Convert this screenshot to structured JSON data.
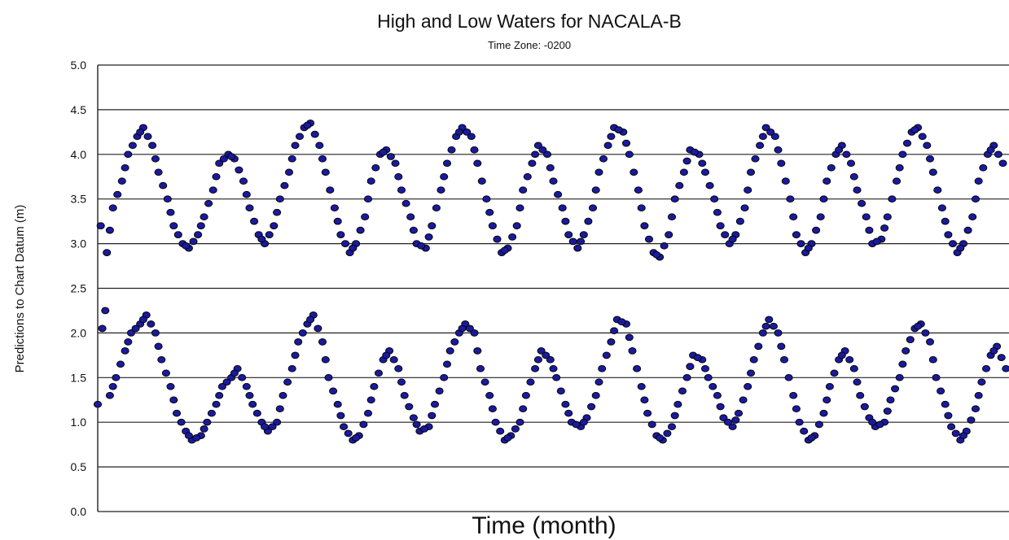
{
  "chart_data": {
    "type": "scatter",
    "title": "High and Low Waters for NACALA-B",
    "subtitle": "Time Zone: -0200",
    "xlabel": "Time (month)",
    "ylabel": "Predictions to Chart Datum (m)",
    "ylim": [
      0.0,
      5.0
    ],
    "yticks": [
      "0.0",
      "0.5",
      "1.0",
      "1.5",
      "2.0",
      "2.5",
      "3.0",
      "3.5",
      "4.0",
      "4.5",
      "5.0"
    ],
    "xlim": [
      0,
      30
    ],
    "grid": true,
    "marker_color": "#1a1a9c",
    "marker_edge_color": "#000000",
    "cycle_days": 14.77,
    "series": [
      {
        "values": [
          [
            0.0,
            1.2
          ],
          [
            0.1,
            3.2
          ],
          [
            0.3,
            2.9
          ],
          [
            0.4,
            1.3
          ],
          [
            0.5,
            3.4
          ],
          [
            0.6,
            1.5
          ],
          [
            0.8,
            3.7
          ],
          [
            0.9,
            1.8
          ],
          [
            1.0,
            4.0
          ],
          [
            1.1,
            2.0
          ],
          [
            1.3,
            4.2
          ],
          [
            1.4,
            2.1
          ],
          [
            1.5,
            4.3
          ],
          [
            1.6,
            2.2
          ],
          [
            1.8,
            4.1
          ],
          [
            1.9,
            2.0
          ],
          [
            2.0,
            3.8
          ],
          [
            2.1,
            1.7
          ],
          [
            2.3,
            3.5
          ],
          [
            2.4,
            1.4
          ],
          [
            2.5,
            3.2
          ],
          [
            2.6,
            1.1
          ],
          [
            2.8,
            3.0
          ],
          [
            2.9,
            0.9
          ],
          [
            3.0,
            2.95
          ],
          [
            3.1,
            0.8
          ],
          [
            3.3,
            3.1
          ],
          [
            3.4,
            0.85
          ],
          [
            3.5,
            3.3
          ],
          [
            3.6,
            1.0
          ],
          [
            3.8,
            3.6
          ],
          [
            3.9,
            1.2
          ],
          [
            4.0,
            3.9
          ],
          [
            4.1,
            1.4
          ],
          [
            4.3,
            4.0
          ],
          [
            4.4,
            1.5
          ],
          [
            4.5,
            3.95
          ],
          [
            4.6,
            1.6
          ],
          [
            4.8,
            3.7
          ],
          [
            4.9,
            1.4
          ],
          [
            5.0,
            3.4
          ],
          [
            5.1,
            1.2
          ],
          [
            5.3,
            3.1
          ],
          [
            5.4,
            1.0
          ],
          [
            5.5,
            3.0
          ],
          [
            5.6,
            0.9
          ],
          [
            5.8,
            3.2
          ],
          [
            5.9,
            1.0
          ],
          [
            6.0,
            3.5
          ],
          [
            6.1,
            1.3
          ],
          [
            6.3,
            3.8
          ],
          [
            6.4,
            1.6
          ],
          [
            6.5,
            4.1
          ],
          [
            6.6,
            1.9
          ],
          [
            6.8,
            4.3
          ],
          [
            6.9,
            2.1
          ],
          [
            7.0,
            4.35
          ],
          [
            7.1,
            2.2
          ],
          [
            7.3,
            4.1
          ],
          [
            7.4,
            1.9
          ],
          [
            7.5,
            3.8
          ],
          [
            7.6,
            1.5
          ],
          [
            7.8,
            3.4
          ],
          [
            7.9,
            1.2
          ],
          [
            8.0,
            3.1
          ],
          [
            8.1,
            0.95
          ],
          [
            8.3,
            2.9
          ],
          [
            8.4,
            0.8
          ],
          [
            8.5,
            3.0
          ],
          [
            8.6,
            0.85
          ],
          [
            8.8,
            3.3
          ],
          [
            8.9,
            1.1
          ],
          [
            9.0,
            3.7
          ],
          [
            9.1,
            1.4
          ],
          [
            9.3,
            4.0
          ],
          [
            9.4,
            1.7
          ],
          [
            9.5,
            4.05
          ],
          [
            9.6,
            1.8
          ],
          [
            9.8,
            3.9
          ],
          [
            9.9,
            1.6
          ],
          [
            10.0,
            3.6
          ],
          [
            10.1,
            1.3
          ],
          [
            10.3,
            3.3
          ],
          [
            10.4,
            1.05
          ],
          [
            10.5,
            3.0
          ],
          [
            10.6,
            0.9
          ],
          [
            10.8,
            2.95
          ],
          [
            10.9,
            0.95
          ],
          [
            11.0,
            3.2
          ],
          [
            11.1,
            1.2
          ],
          [
            11.3,
            3.6
          ],
          [
            11.4,
            1.5
          ],
          [
            11.5,
            3.9
          ],
          [
            11.6,
            1.8
          ],
          [
            11.8,
            4.2
          ],
          [
            11.9,
            2.0
          ],
          [
            12.0,
            4.3
          ],
          [
            12.1,
            2.1
          ],
          [
            12.3,
            4.2
          ],
          [
            12.4,
            2.0
          ],
          [
            12.5,
            3.9
          ],
          [
            12.6,
            1.6
          ],
          [
            12.8,
            3.5
          ],
          [
            12.9,
            1.3
          ],
          [
            13.0,
            3.2
          ],
          [
            13.1,
            1.0
          ],
          [
            13.3,
            2.9
          ],
          [
            13.4,
            0.8
          ],
          [
            13.5,
            2.95
          ],
          [
            13.6,
            0.85
          ],
          [
            13.8,
            3.2
          ],
          [
            13.9,
            1.0
          ],
          [
            14.0,
            3.6
          ],
          [
            14.1,
            1.3
          ],
          [
            14.3,
            3.9
          ],
          [
            14.4,
            1.6
          ],
          [
            14.5,
            4.1
          ],
          [
            14.6,
            1.8
          ],
          [
            14.8,
            4.0
          ],
          [
            14.9,
            1.7
          ],
          [
            15.0,
            3.7
          ],
          [
            15.1,
            1.5
          ],
          [
            15.3,
            3.4
          ],
          [
            15.4,
            1.2
          ],
          [
            15.5,
            3.1
          ],
          [
            15.6,
            1.0
          ],
          [
            15.8,
            2.95
          ],
          [
            15.9,
            0.95
          ],
          [
            16.0,
            3.1
          ],
          [
            16.1,
            1.05
          ],
          [
            16.3,
            3.4
          ],
          [
            16.4,
            1.3
          ],
          [
            16.5,
            3.8
          ],
          [
            16.6,
            1.6
          ],
          [
            16.8,
            4.1
          ],
          [
            16.9,
            1.9
          ],
          [
            17.0,
            4.3
          ],
          [
            17.1,
            2.15
          ],
          [
            17.3,
            4.25
          ],
          [
            17.4,
            2.1
          ],
          [
            17.5,
            4.0
          ],
          [
            17.6,
            1.8
          ],
          [
            17.8,
            3.6
          ],
          [
            17.9,
            1.4
          ],
          [
            18.0,
            3.2
          ],
          [
            18.1,
            1.1
          ],
          [
            18.3,
            2.9
          ],
          [
            18.4,
            0.85
          ],
          [
            18.5,
            2.85
          ],
          [
            18.6,
            0.8
          ],
          [
            18.8,
            3.1
          ],
          [
            18.9,
            0.95
          ],
          [
            19.0,
            3.5
          ],
          [
            19.1,
            1.2
          ],
          [
            19.3,
            3.8
          ],
          [
            19.4,
            1.5
          ],
          [
            19.5,
            4.05
          ],
          [
            19.6,
            1.75
          ],
          [
            19.8,
            4.0
          ],
          [
            19.9,
            1.7
          ],
          [
            20.0,
            3.8
          ],
          [
            20.1,
            1.5
          ],
          [
            20.3,
            3.5
          ],
          [
            20.4,
            1.3
          ],
          [
            20.5,
            3.2
          ],
          [
            20.6,
            1.05
          ],
          [
            20.8,
            3.0
          ],
          [
            20.9,
            0.95
          ],
          [
            21.0,
            3.1
          ],
          [
            21.1,
            1.1
          ],
          [
            21.3,
            3.4
          ],
          [
            21.4,
            1.4
          ],
          [
            21.5,
            3.8
          ],
          [
            21.6,
            1.7
          ],
          [
            21.8,
            4.1
          ],
          [
            21.9,
            2.0
          ],
          [
            22.0,
            4.3
          ],
          [
            22.1,
            2.15
          ],
          [
            22.3,
            4.2
          ],
          [
            22.4,
            2.0
          ],
          [
            22.5,
            3.9
          ],
          [
            22.6,
            1.7
          ],
          [
            22.8,
            3.5
          ],
          [
            22.9,
            1.3
          ],
          [
            23.0,
            3.1
          ],
          [
            23.1,
            1.0
          ],
          [
            23.3,
            2.9
          ],
          [
            23.4,
            0.8
          ],
          [
            23.5,
            3.0
          ],
          [
            23.6,
            0.85
          ],
          [
            23.8,
            3.3
          ],
          [
            23.9,
            1.1
          ],
          [
            24.0,
            3.7
          ],
          [
            24.1,
            1.4
          ],
          [
            24.3,
            4.0
          ],
          [
            24.4,
            1.7
          ],
          [
            24.5,
            4.1
          ],
          [
            24.6,
            1.8
          ],
          [
            24.8,
            3.9
          ],
          [
            24.9,
            1.6
          ],
          [
            25.0,
            3.6
          ],
          [
            25.1,
            1.3
          ],
          [
            25.3,
            3.3
          ],
          [
            25.4,
            1.05
          ],
          [
            25.5,
            3.0
          ],
          [
            25.6,
            0.95
          ],
          [
            25.8,
            3.05
          ],
          [
            25.9,
            1.0
          ],
          [
            26.0,
            3.3
          ],
          [
            26.1,
            1.25
          ],
          [
            26.3,
            3.7
          ],
          [
            26.4,
            1.5
          ],
          [
            26.5,
            4.0
          ],
          [
            26.6,
            1.8
          ],
          [
            26.8,
            4.25
          ],
          [
            26.9,
            2.05
          ],
          [
            27.0,
            4.3
          ],
          [
            27.1,
            2.1
          ],
          [
            27.3,
            4.1
          ],
          [
            27.4,
            1.9
          ],
          [
            27.5,
            3.8
          ],
          [
            27.6,
            1.5
          ],
          [
            27.8,
            3.4
          ],
          [
            27.9,
            1.2
          ],
          [
            28.0,
            3.1
          ],
          [
            28.1,
            0.95
          ],
          [
            28.3,
            2.9
          ],
          [
            28.4,
            0.8
          ],
          [
            28.5,
            3.0
          ],
          [
            28.6,
            0.9
          ],
          [
            28.8,
            3.3
          ],
          [
            28.9,
            1.15
          ],
          [
            29.0,
            3.7
          ],
          [
            29.1,
            1.45
          ],
          [
            29.3,
            4.0
          ],
          [
            29.4,
            1.75
          ],
          [
            29.5,
            4.1
          ],
          [
            29.6,
            1.85
          ],
          [
            29.8,
            3.9
          ],
          [
            29.9,
            1.6
          ]
        ]
      }
    ]
  }
}
